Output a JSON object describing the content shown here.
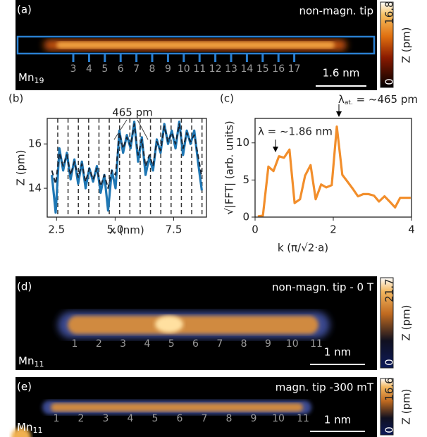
{
  "panel_a": {
    "label": "(a)",
    "caption": "non-magn. tip",
    "element": "Mn",
    "count": "19",
    "atoms": [
      "3",
      "4",
      "5",
      "6",
      "7",
      "8",
      "9",
      "10",
      "11",
      "12",
      "13",
      "14",
      "15",
      "16",
      "17"
    ],
    "scale_bar": "1.6 nm",
    "colorbar": {
      "max": "16.8",
      "min": "0",
      "label": "Z (pm)"
    }
  },
  "chart_data": [
    {
      "type": "line",
      "panel": "(b)",
      "xlabel": "x (nm)",
      "ylabel": "Z (pm)",
      "annotation": "465 pm",
      "x": [
        2.3,
        2.46,
        2.62,
        2.78,
        2.94,
        3.1,
        3.26,
        3.42,
        3.58,
        3.74,
        3.9,
        4.06,
        4.22,
        4.38,
        4.54,
        4.7,
        4.86,
        5.02,
        5.18,
        5.34,
        5.5,
        5.66,
        5.82,
        5.98,
        6.14,
        6.3,
        6.46,
        6.62,
        6.78,
        6.94,
        7.1,
        7.26,
        7.42,
        7.58,
        7.74,
        7.9,
        8.06,
        8.22,
        8.38,
        8.54,
        8.7
      ],
      "series": [
        {
          "color": "#1f77b4",
          "values": [
            14.6,
            12.9,
            15.8,
            14.8,
            15.6,
            14.4,
            15.3,
            14.2,
            15.2,
            14.0,
            14.9,
            14.3,
            15.0,
            13.8,
            14.6,
            13.0,
            14.8,
            14.0,
            16.6,
            15.6,
            16.4,
            15.8,
            17.0,
            15.2,
            16.3,
            14.6,
            15.4,
            14.8,
            16.2,
            15.6,
            16.9,
            16.0,
            16.6,
            15.8,
            17.0,
            15.5,
            16.6,
            16.0,
            16.6,
            15.2,
            13.9
          ]
        },
        {
          "color": "#1a2636",
          "dashed": true,
          "values": [
            14.8,
            14.2,
            15.6,
            15.0,
            15.5,
            14.6,
            15.2,
            14.5,
            15.1,
            14.3,
            14.9,
            14.4,
            14.9,
            14.1,
            14.6,
            14.0,
            14.8,
            14.6,
            16.5,
            15.8,
            16.3,
            15.9,
            16.9,
            15.5,
            16.2,
            15.0,
            15.5,
            15.0,
            16.1,
            15.7,
            16.8,
            16.1,
            16.5,
            16.0,
            16.9,
            15.8,
            16.5,
            16.1,
            16.4,
            15.5,
            14.5
          ]
        }
      ],
      "guides": [
        2.55,
        2.99,
        3.43,
        3.87,
        4.31,
        4.75,
        5.19,
        5.63,
        6.07,
        6.51,
        6.95,
        7.39,
        7.83,
        8.27,
        8.71
      ],
      "xlim": [
        2.1,
        8.9
      ],
      "ylim": [
        12.7,
        17.15
      ],
      "xticks": [
        2.5,
        {
          "value": 5,
          "label": "5.0"
        },
        7.5
      ],
      "yticks": [
        14,
        16
      ]
    },
    {
      "type": "line",
      "panel": "(c)",
      "xlabel": "k (π/√2·a)",
      "ylabel": "√|FFT| (arb. units)",
      "annotation_1": "λ = ~1.86 nm",
      "annotation_2": {
        "symbol": "λ",
        "subscript": "at.",
        "text": " = ~465 pm"
      },
      "x": [
        0.07,
        0.2,
        0.34,
        0.47,
        0.61,
        0.74,
        0.88,
        1.01,
        1.15,
        1.28,
        1.42,
        1.55,
        1.69,
        1.82,
        1.96,
        2.09,
        2.23,
        2.36,
        2.5,
        2.63,
        2.77,
        2.9,
        3.04,
        3.17,
        3.31,
        3.44,
        3.58,
        3.71,
        3.85,
        3.98
      ],
      "series": [
        {
          "color": "#f28e2b",
          "values": [
            0.1,
            0.2,
            6.8,
            6.2,
            8.2,
            8.0,
            9.1,
            1.9,
            2.4,
            5.6,
            7.0,
            2.4,
            4.4,
            4.0,
            4.3,
            12.2,
            5.7,
            4.8,
            3.8,
            2.8,
            3.1,
            3.1,
            2.9,
            2.1,
            2.8,
            2.1,
            1.3,
            2.6,
            2.6,
            2.6
          ]
        }
      ],
      "xlim": [
        0,
        4
      ],
      "ylim": [
        0,
        13.3
      ],
      "xticks": [
        0,
        2,
        4
      ],
      "yticks": [
        0,
        5,
        10
      ]
    }
  ],
  "panel_d": {
    "label": "(d)",
    "caption": "non-magn. tip - 0 T",
    "element": "Mn",
    "count": "11",
    "atoms": [
      "1",
      "2",
      "3",
      "4",
      "5",
      "6",
      "7",
      "8",
      "9",
      "10",
      "11"
    ],
    "scale_bar": "1 nm",
    "colorbar": {
      "max": "21.7",
      "min": "0",
      "label": "Z (pm)"
    }
  },
  "panel_e": {
    "label": "(e)",
    "caption": "magn. tip -300 mT",
    "element": "Mn",
    "count": "11",
    "atoms": [
      "1",
      "2",
      "3",
      "4",
      "5",
      "6",
      "7",
      "8",
      "9",
      "10",
      "11"
    ],
    "scale_bar": "1 nm",
    "colorbar": {
      "max": "16.6",
      "min": "0",
      "label": "Z (pm)"
    }
  }
}
